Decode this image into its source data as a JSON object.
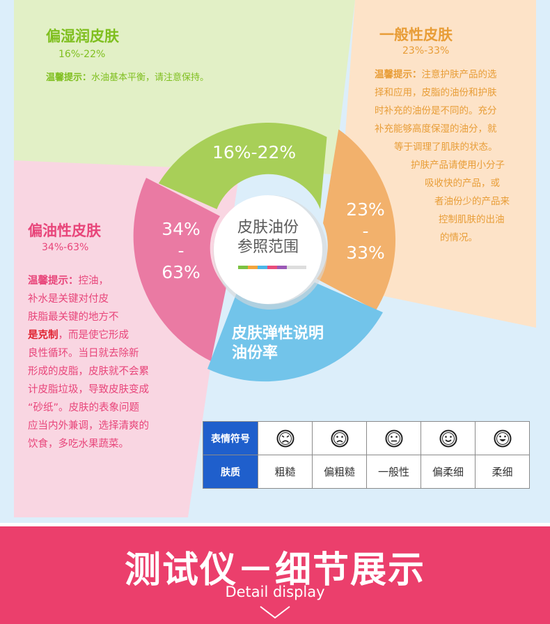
{
  "colors": {
    "green": "#7fbf1f",
    "orange": "#e89d37",
    "pink": "#e8457a",
    "blue_header": "#1f5fcc",
    "banner": "#eb3f6c"
  },
  "quadrants": {
    "top_left": {
      "title": "偏湿润皮肤",
      "range": "16%-22%",
      "tip_label": "温馨提示：",
      "tip_text": "水油基本平衡，请注意保持。"
    },
    "top_right": {
      "title": "一般性皮肤",
      "range": "23%-33%",
      "tip_label": "温馨提示：",
      "lines": [
        "注意护肤产品的选",
        "择和应用，皮脂的油份和护肤",
        "时补充的油份是不同的。充分",
        "补充能够高度保湿的油分，就",
        "等于调理了肌肤的状态。",
        "护肤产品请使用小分子",
        "吸收快的产品，或",
        "者油份少的产品来",
        "控制肌肤的出油",
        "的情况。"
      ]
    },
    "left": {
      "title": "偏油性皮肤",
      "range": "34%-63%",
      "tip_label": "温馨提示：",
      "line1_rest": "控油，",
      "line2": "补水是关键对付皮",
      "line3": "肤脂最关键的地方不",
      "line4_bold": "是克制",
      "line4_rest": "，而是使它形成",
      "line5": "良性循环。当日就去除新",
      "line6": "形成的皮脂，皮肤就不会累",
      "line7": "计皮脂垃圾，导致皮肤变成",
      "line8": "“砂纸”。皮肤的表象问题",
      "line9": "应当内外兼调，选择清爽的",
      "line10": "饮食，多吃水果蔬菜。"
    }
  },
  "donut": {
    "green_label": "16%-22%",
    "orange_label": {
      "top": "23%",
      "dash": "-",
      "bottom": "33%"
    },
    "pink_label": {
      "top": "34%",
      "dash": "-",
      "bottom": "63%"
    },
    "blue_label": {
      "line1": "皮肤弹性说明",
      "line2": "油份率"
    },
    "center": {
      "line1": "皮肤油份",
      "line2": "参照范围"
    }
  },
  "legend": {
    "row1_header": "表情符号",
    "row2_header": "肤质",
    "faces": [
      "angry-face-icon",
      "sad-face-icon",
      "neutral-face-icon",
      "smile-face-icon",
      "grin-face-icon"
    ],
    "labels": [
      "粗糙",
      "偏粗糙",
      "一般性",
      "偏柔细",
      "柔细"
    ]
  },
  "banner": {
    "title": "测试仪－细节展示",
    "subtitle": "Detail display"
  }
}
